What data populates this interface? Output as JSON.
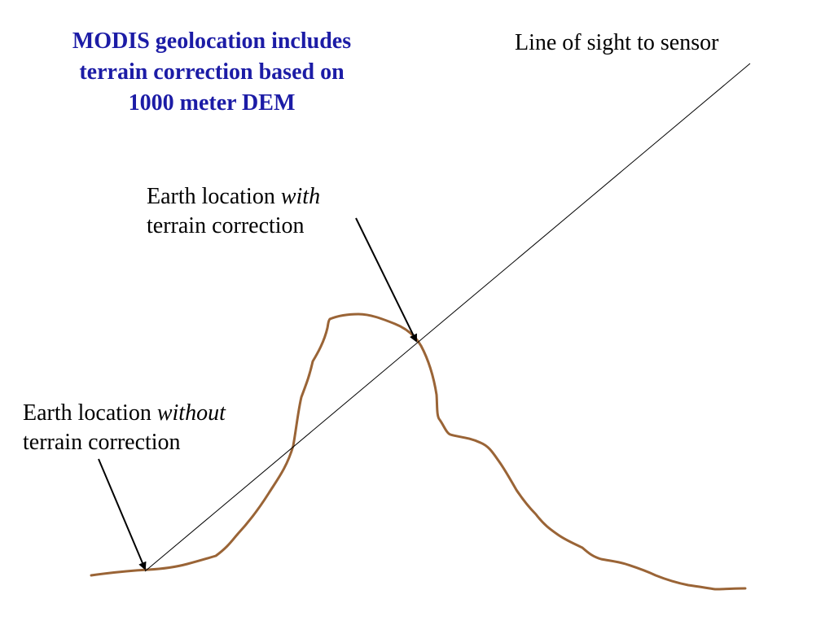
{
  "title": {
    "line1": "MODIS geolocation includes",
    "line2": "terrain correction based on",
    "line3": "1000 meter DEM"
  },
  "labels": {
    "line_of_sight": "Line of sight to sensor",
    "with_correction": {
      "prefix": "Earth location ",
      "emphasis": "with",
      "line2": "terrain correction"
    },
    "without_correction": {
      "prefix": "Earth location ",
      "emphasis": "without",
      "line2": "terrain correction"
    }
  },
  "colors": {
    "title": "#1c1ca6",
    "terrain": "#9a6436",
    "line": "#000000"
  }
}
